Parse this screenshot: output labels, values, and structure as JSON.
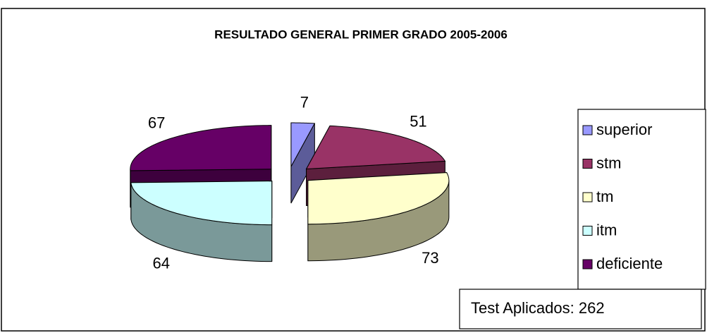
{
  "chart_data": {
    "type": "pie3d",
    "title": "RESULTADO GENERAL PRIMER GRADO 2005-2006",
    "categories": [
      "superior",
      "stm",
      "tm",
      "itm",
      "deficiente"
    ],
    "values": [
      7,
      51,
      73,
      64,
      67
    ],
    "colors": [
      "#9999ff",
      "#993366",
      "#ffffcc",
      "#ccffff",
      "#660066"
    ],
    "legend": "right",
    "annotation": "Test Aplicados: 262"
  }
}
